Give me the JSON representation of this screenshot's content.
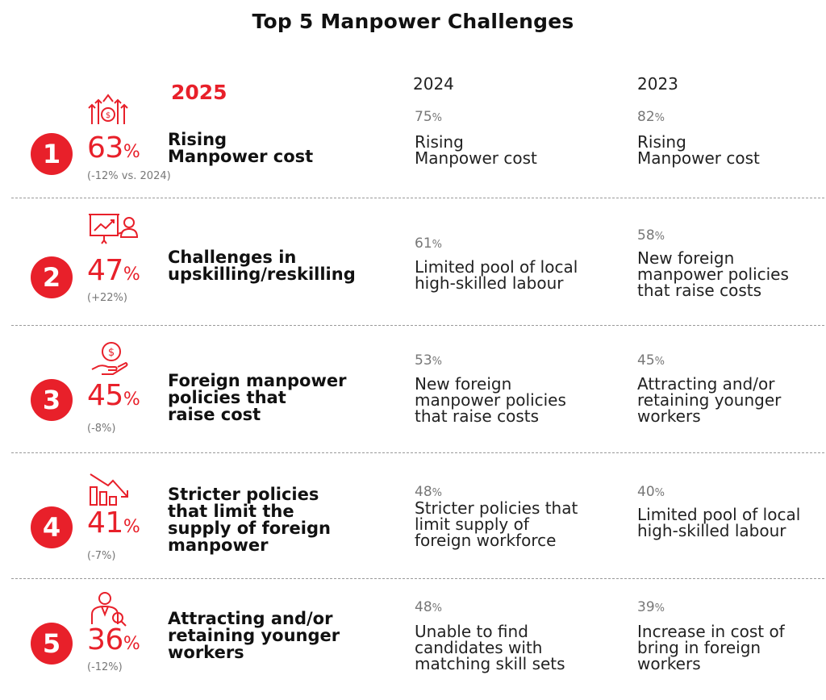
{
  "title": "Top 5 Manpower Challenges",
  "years": {
    "current": "2025",
    "prev1": "2024",
    "prev2": "2023"
  },
  "accent_color": "#e8202a",
  "rows": [
    {
      "rank": "1",
      "icon": "rising-cost-icon",
      "pct": "63",
      "pct_sign": "%",
      "change": "(-12% vs. 2024)",
      "label": "Rising\nManpower cost",
      "y2024": {
        "pct": "75",
        "sign": "%",
        "text": "Rising\nManpower cost"
      },
      "y2023": {
        "pct": "82",
        "sign": "%",
        "text": "Rising\nManpower cost"
      }
    },
    {
      "rank": "2",
      "icon": "presentation-training-icon",
      "pct": "47",
      "pct_sign": "%",
      "change": "(+22%)",
      "label": "Challenges in\nupskilling/reskilling",
      "y2024": {
        "pct": "61",
        "sign": "%",
        "text": "Limited pool of local\nhigh-skilled labour"
      },
      "y2023": {
        "pct": "58",
        "sign": "%",
        "text": "New foreign\nmanpower policies\nthat raise costs"
      }
    },
    {
      "rank": "3",
      "icon": "hand-coin-icon",
      "pct": "45",
      "pct_sign": "%",
      "change": "(-8%)",
      "label": "Foreign manpower\npolicies that\nraise cost",
      "y2024": {
        "pct": "53",
        "sign": "%",
        "text": "New foreign\nmanpower policies\nthat raise costs"
      },
      "y2023": {
        "pct": "45",
        "sign": "%",
        "text": "Attracting and/or\nretaining younger\nworkers"
      }
    },
    {
      "rank": "4",
      "icon": "declining-chart-icon",
      "pct": "41",
      "pct_sign": "%",
      "change": "(-7%)",
      "label": "Stricter policies\nthat limit the\nsupply of foreign\nmanpower",
      "y2024": {
        "pct": "48",
        "sign": "%",
        "text": "Stricter policies that\nlimit supply of\nforeign workforce"
      },
      "y2023": {
        "pct": "40",
        "sign": "%",
        "text": "Limited pool of local\nhigh-skilled labour"
      }
    },
    {
      "rank": "5",
      "icon": "candidate-search-icon",
      "pct": "36",
      "pct_sign": "%",
      "change": "(-12%)",
      "label": "Attracting and/or\nretaining younger\nworkers",
      "y2024": {
        "pct": "48",
        "sign": "%",
        "text": "Unable to find\ncandidates with\nmatching skill sets"
      },
      "y2023": {
        "pct": "39",
        "sign": "%",
        "text": "Increase in cost of\nbring in foreign\nworkers"
      }
    }
  ]
}
